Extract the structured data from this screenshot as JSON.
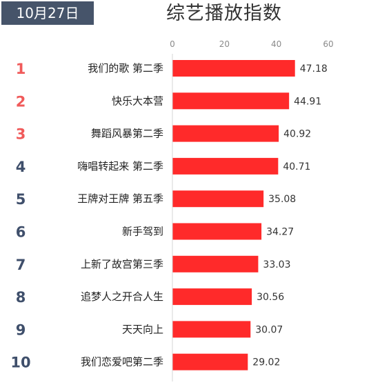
{
  "header": {
    "date": "10月27日",
    "title": "综艺播放指数"
  },
  "colors": {
    "bar": "#ff2a2a",
    "rank_top": "#f05a5a",
    "rank_other": "#3f4f6b",
    "badge_bg": "#46546a"
  },
  "chart_data": {
    "type": "bar",
    "orientation": "horizontal",
    "title": "综艺播放指数",
    "ranks": [
      "1",
      "2",
      "3",
      "4",
      "5",
      "6",
      "7",
      "8",
      "9",
      "10"
    ],
    "categories": [
      "我们的歌 第二季",
      "快乐大本营",
      "舞蹈风暴第二季",
      "嗨唱转起来 第二季",
      "王牌对王牌 第五季",
      "新手驾到",
      "上新了故宫第三季",
      "追梦人之开合人生",
      "天天向上",
      "我们恋爱吧第二季"
    ],
    "values": [
      47.18,
      44.91,
      40.92,
      40.71,
      35.08,
      34.27,
      33.03,
      30.56,
      30.07,
      29.02
    ],
    "value_labels": [
      "47.18",
      "44.91",
      "40.92",
      "40.71",
      "35.08",
      "34.27",
      "33.03",
      "30.56",
      "30.07",
      "29.02"
    ],
    "xlim": [
      0,
      60
    ],
    "xticks": [
      "0",
      "20",
      "40",
      "60"
    ],
    "grid": false,
    "legend": "none"
  }
}
